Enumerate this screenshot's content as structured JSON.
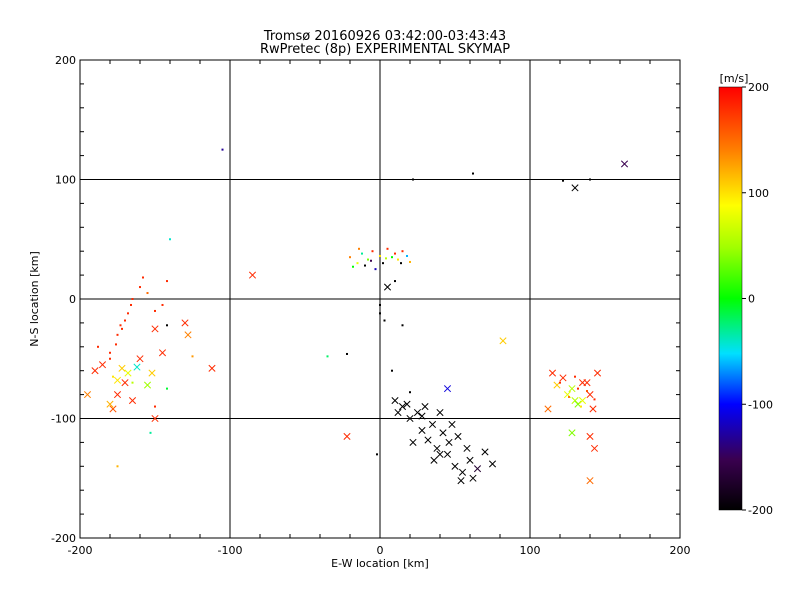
{
  "chart_data": {
    "type": "scatter",
    "title": "Tromsø 20160926 03:42:00-03:43:43",
    "subtitle": "RwPretec (8p) EXPERIMENTAL SKYMAP",
    "xlabel": "E-W location [km]",
    "ylabel": "N-S location [km]",
    "xlim": [
      -200,
      200
    ],
    "ylim": [
      -200,
      200
    ],
    "xticks": [
      "-200",
      "-100",
      "0",
      "100",
      "200"
    ],
    "yticks": [
      "-200",
      "-100",
      "0",
      "100",
      "200"
    ],
    "grid": true,
    "colorbar": {
      "label": "[m/s]",
      "range": [
        -200,
        200
      ],
      "ticks": [
        "200",
        "100",
        "0",
        "-100",
        "-200"
      ]
    },
    "points": [
      {
        "x": -170,
        "y": -70,
        "v": 180,
        "m": "x"
      },
      {
        "x": -175,
        "y": -80,
        "v": 180,
        "m": "x"
      },
      {
        "x": -185,
        "y": -55,
        "v": 180,
        "m": "x"
      },
      {
        "x": -190,
        "y": -60,
        "v": 180,
        "m": "x"
      },
      {
        "x": -165,
        "y": -85,
        "v": 180,
        "m": "x"
      },
      {
        "x": -160,
        "y": -50,
        "v": 180,
        "m": "x"
      },
      {
        "x": -150,
        "y": -25,
        "v": 180,
        "m": "x"
      },
      {
        "x": -145,
        "y": -45,
        "v": 180,
        "m": "x"
      },
      {
        "x": -130,
        "y": -20,
        "v": 180,
        "m": "x"
      },
      {
        "x": -128,
        "y": -30,
        "v": 140,
        "m": "x"
      },
      {
        "x": -112,
        "y": -58,
        "v": 180,
        "m": "x"
      },
      {
        "x": -150,
        "y": -100,
        "v": 180,
        "m": "x"
      },
      {
        "x": -178,
        "y": -92,
        "v": 160,
        "m": "x"
      },
      {
        "x": -172,
        "y": -58,
        "v": 110,
        "m": "x"
      },
      {
        "x": -175,
        "y": -68,
        "v": 100,
        "m": "x"
      },
      {
        "x": -168,
        "y": -62,
        "v": 80,
        "m": "x"
      },
      {
        "x": -162,
        "y": -57,
        "v": -40,
        "m": "x"
      },
      {
        "x": -152,
        "y": -62,
        "v": 110,
        "m": "x"
      },
      {
        "x": -180,
        "y": -88,
        "v": 120,
        "m": "x"
      },
      {
        "x": -195,
        "y": -80,
        "v": 140,
        "m": "x"
      },
      {
        "x": -155,
        "y": -72,
        "v": 50,
        "m": "x"
      },
      {
        "x": -85,
        "y": 20,
        "v": 180,
        "m": "x"
      },
      {
        "x": -22,
        "y": -115,
        "v": 180,
        "m": "x"
      },
      {
        "x": 82,
        "y": -35,
        "v": 110,
        "m": "x"
      },
      {
        "x": 45,
        "y": -75,
        "v": -110,
        "m": "x"
      },
      {
        "x": 130,
        "y": 93,
        "v": -200,
        "m": "x"
      },
      {
        "x": 163,
        "y": 113,
        "v": -150,
        "m": "x"
      },
      {
        "x": 5,
        "y": 10,
        "v": -200,
        "m": "x"
      },
      {
        "x": 115,
        "y": -62,
        "v": 180,
        "m": "x"
      },
      {
        "x": 118,
        "y": -72,
        "v": 110,
        "m": "x"
      },
      {
        "x": 125,
        "y": -80,
        "v": 80,
        "m": "x"
      },
      {
        "x": 130,
        "y": -85,
        "v": 60,
        "m": "x"
      },
      {
        "x": 135,
        "y": -70,
        "v": 180,
        "m": "x"
      },
      {
        "x": 138,
        "y": -70,
        "v": 180,
        "m": "x"
      },
      {
        "x": 140,
        "y": -80,
        "v": 180,
        "m": "x"
      },
      {
        "x": 145,
        "y": -62,
        "v": 180,
        "m": "x"
      },
      {
        "x": 142,
        "y": -92,
        "v": 180,
        "m": "x"
      },
      {
        "x": 112,
        "y": -92,
        "v": 150,
        "m": "x"
      },
      {
        "x": 128,
        "y": -112,
        "v": 40,
        "m": "x"
      },
      {
        "x": 140,
        "y": -115,
        "v": 180,
        "m": "x"
      },
      {
        "x": 143,
        "y": -125,
        "v": 180,
        "m": "x"
      },
      {
        "x": 140,
        "y": -152,
        "v": 150,
        "m": "x"
      },
      {
        "x": 132,
        "y": -88,
        "v": 40,
        "m": "x"
      },
      {
        "x": 128,
        "y": -75,
        "v": 60,
        "m": "x"
      },
      {
        "x": 135,
        "y": -85,
        "v": 80,
        "m": "x"
      },
      {
        "x": 122,
        "y": -66,
        "v": 180,
        "m": "x"
      },
      {
        "x": 10,
        "y": -85,
        "v": -200,
        "m": "x"
      },
      {
        "x": 15,
        "y": -90,
        "v": -200,
        "m": "x"
      },
      {
        "x": 18,
        "y": -88,
        "v": -200,
        "m": "x"
      },
      {
        "x": 20,
        "y": -100,
        "v": -200,
        "m": "x"
      },
      {
        "x": 25,
        "y": -95,
        "v": -200,
        "m": "x"
      },
      {
        "x": 28,
        "y": -110,
        "v": -200,
        "m": "x"
      },
      {
        "x": 30,
        "y": -90,
        "v": -200,
        "m": "x"
      },
      {
        "x": 32,
        "y": -118,
        "v": -200,
        "m": "x"
      },
      {
        "x": 35,
        "y": -105,
        "v": -200,
        "m": "x"
      },
      {
        "x": 38,
        "y": -125,
        "v": -200,
        "m": "x"
      },
      {
        "x": 40,
        "y": -95,
        "v": -200,
        "m": "x"
      },
      {
        "x": 42,
        "y": -112,
        "v": -200,
        "m": "x"
      },
      {
        "x": 45,
        "y": -130,
        "v": -200,
        "m": "x"
      },
      {
        "x": 48,
        "y": -105,
        "v": -200,
        "m": "x"
      },
      {
        "x": 50,
        "y": -140,
        "v": -200,
        "m": "x"
      },
      {
        "x": 52,
        "y": -115,
        "v": -200,
        "m": "x"
      },
      {
        "x": 55,
        "y": -145,
        "v": -200,
        "m": "x"
      },
      {
        "x": 58,
        "y": -125,
        "v": -200,
        "m": "x"
      },
      {
        "x": 60,
        "y": -135,
        "v": -200,
        "m": "x"
      },
      {
        "x": 62,
        "y": -150,
        "v": -200,
        "m": "x"
      },
      {
        "x": 70,
        "y": -128,
        "v": -200,
        "m": "x"
      },
      {
        "x": 75,
        "y": -138,
        "v": -200,
        "m": "x"
      },
      {
        "x": 22,
        "y": -120,
        "v": -200,
        "m": "x"
      },
      {
        "x": 36,
        "y": -135,
        "v": -200,
        "m": "x"
      },
      {
        "x": 46,
        "y": -120,
        "v": -200,
        "m": "x"
      },
      {
        "x": 54,
        "y": -152,
        "v": -200,
        "m": "x"
      },
      {
        "x": 40,
        "y": -130,
        "v": -200,
        "m": "x"
      },
      {
        "x": 12,
        "y": -95,
        "v": -200,
        "m": "x"
      },
      {
        "x": 28,
        "y": -98,
        "v": -200,
        "m": "x"
      },
      {
        "x": 65,
        "y": -142,
        "v": -170,
        "m": "x"
      },
      {
        "x": -165,
        "y": 0,
        "v": 180,
        "m": "d"
      },
      {
        "x": -166,
        "y": -5,
        "v": 180,
        "m": "d"
      },
      {
        "x": -168,
        "y": -12,
        "v": 180,
        "m": "d"
      },
      {
        "x": -170,
        "y": -18,
        "v": 180,
        "m": "d"
      },
      {
        "x": -172,
        "y": -25,
        "v": 180,
        "m": "d"
      },
      {
        "x": -175,
        "y": -30,
        "v": 180,
        "m": "d"
      },
      {
        "x": -173,
        "y": -22,
        "v": 180,
        "m": "d"
      },
      {
        "x": -176,
        "y": -38,
        "v": 180,
        "m": "d"
      },
      {
        "x": -180,
        "y": -45,
        "v": 180,
        "m": "d"
      },
      {
        "x": -160,
        "y": 10,
        "v": 180,
        "m": "d"
      },
      {
        "x": -158,
        "y": 18,
        "v": 180,
        "m": "d"
      },
      {
        "x": -155,
        "y": 5,
        "v": 150,
        "m": "d"
      },
      {
        "x": -150,
        "y": -10,
        "v": 180,
        "m": "d"
      },
      {
        "x": -188,
        "y": -40,
        "v": 180,
        "m": "d"
      },
      {
        "x": -180,
        "y": -50,
        "v": 180,
        "m": "d"
      },
      {
        "x": -145,
        "y": -5,
        "v": 180,
        "m": "d"
      },
      {
        "x": -142,
        "y": 15,
        "v": 180,
        "m": "d"
      },
      {
        "x": -178,
        "y": -65,
        "v": 100,
        "m": "d"
      },
      {
        "x": -165,
        "y": -70,
        "v": 60,
        "m": "d"
      },
      {
        "x": -150,
        "y": -90,
        "v": 180,
        "m": "d"
      },
      {
        "x": -175,
        "y": -140,
        "v": 120,
        "m": "d"
      },
      {
        "x": -153,
        "y": -112,
        "v": -30,
        "m": "d"
      },
      {
        "x": -142,
        "y": -75,
        "v": -10,
        "m": "d"
      },
      {
        "x": -140,
        "y": 50,
        "v": -40,
        "m": "d"
      },
      {
        "x": -125,
        "y": -48,
        "v": 130,
        "m": "d"
      },
      {
        "x": -142,
        "y": -22,
        "v": -200,
        "m": "d"
      },
      {
        "x": -105,
        "y": 125,
        "v": -130,
        "m": "d"
      },
      {
        "x": -35,
        "y": -48,
        "v": -20,
        "m": "d"
      },
      {
        "x": -22,
        "y": -46,
        "v": -200,
        "m": "d"
      },
      {
        "x": -20,
        "y": 35,
        "v": 140,
        "m": "d"
      },
      {
        "x": -15,
        "y": 30,
        "v": 80,
        "m": "d"
      },
      {
        "x": -12,
        "y": 38,
        "v": -30,
        "m": "d"
      },
      {
        "x": -10,
        "y": 28,
        "v": -200,
        "m": "d"
      },
      {
        "x": -8,
        "y": 33,
        "v": 40,
        "m": "d"
      },
      {
        "x": -5,
        "y": 40,
        "v": 180,
        "m": "d"
      },
      {
        "x": -3,
        "y": 25,
        "v": -120,
        "m": "d"
      },
      {
        "x": 0,
        "y": 36,
        "v": 100,
        "m": "d"
      },
      {
        "x": 2,
        "y": 30,
        "v": -200,
        "m": "d"
      },
      {
        "x": 5,
        "y": 42,
        "v": 180,
        "m": "d"
      },
      {
        "x": 8,
        "y": 35,
        "v": 0,
        "m": "d"
      },
      {
        "x": 10,
        "y": 38,
        "v": 180,
        "m": "d"
      },
      {
        "x": 12,
        "y": 33,
        "v": 100,
        "m": "d"
      },
      {
        "x": 15,
        "y": 40,
        "v": 180,
        "m": "d"
      },
      {
        "x": 18,
        "y": 36,
        "v": -60,
        "m": "d"
      },
      {
        "x": 20,
        "y": 31,
        "v": 120,
        "m": "d"
      },
      {
        "x": -18,
        "y": 27,
        "v": 0,
        "m": "d"
      },
      {
        "x": -6,
        "y": 32,
        "v": -150,
        "m": "d"
      },
      {
        "x": 4,
        "y": 34,
        "v": 60,
        "m": "d"
      },
      {
        "x": -14,
        "y": 42,
        "v": 140,
        "m": "d"
      },
      {
        "x": 14,
        "y": 30,
        "v": -200,
        "m": "d"
      },
      {
        "x": 0,
        "y": -5,
        "v": -200,
        "m": "d"
      },
      {
        "x": 0,
        "y": -12,
        "v": -200,
        "m": "d"
      },
      {
        "x": 3,
        "y": -18,
        "v": -200,
        "m": "d"
      },
      {
        "x": 10,
        "y": 15,
        "v": -200,
        "m": "d"
      },
      {
        "x": 15,
        "y": -22,
        "v": -200,
        "m": "d"
      },
      {
        "x": 8,
        "y": -60,
        "v": -200,
        "m": "d"
      },
      {
        "x": 20,
        "y": -78,
        "v": -200,
        "m": "d"
      },
      {
        "x": -2,
        "y": -130,
        "v": -200,
        "m": "d"
      },
      {
        "x": 62,
        "y": 105,
        "v": -200,
        "m": "d"
      },
      {
        "x": 122,
        "y": 99,
        "v": -200,
        "m": "d"
      },
      {
        "x": 140,
        "y": 100,
        "v": -200,
        "m": "d"
      },
      {
        "x": 22,
        "y": 100,
        "v": -200,
        "m": "d"
      },
      {
        "x": 120,
        "y": -70,
        "v": 180,
        "m": "d"
      },
      {
        "x": 132,
        "y": -75,
        "v": 180,
        "m": "d"
      },
      {
        "x": 126,
        "y": -82,
        "v": 140,
        "m": "d"
      },
      {
        "x": 138,
        "y": -77,
        "v": 160,
        "m": "d"
      },
      {
        "x": 143,
        "y": -84,
        "v": 180,
        "m": "d"
      },
      {
        "x": 130,
        "y": -65,
        "v": 180,
        "m": "d"
      },
      {
        "x": 134,
        "y": -90,
        "v": 100,
        "m": "d"
      }
    ]
  }
}
